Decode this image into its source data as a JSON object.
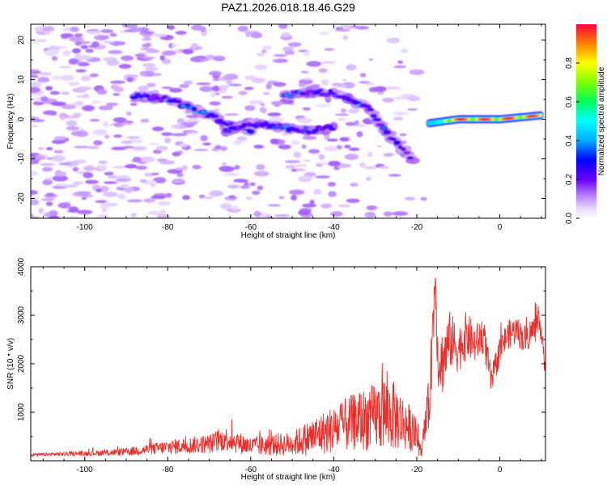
{
  "title": "PAZ1.2026.018.18.46.G29",
  "chart_data": [
    {
      "type": "heatmap",
      "title": "PAZ1.2026.018.18.46.G29",
      "xlabel": "Height of straight line (km)",
      "ylabel": "Frequency (Hz)",
      "xlim": [
        -113,
        11
      ],
      "ylim": [
        -25,
        24
      ],
      "xticks": [
        -100,
        -80,
        -60,
        -40,
        -20,
        0
      ],
      "yticks": [
        -20,
        -10,
        0,
        10,
        20
      ],
      "xtick_labels": [
        "-100",
        "-80",
        "-60",
        "-40",
        "-20",
        "0"
      ],
      "ytick_labels": [
        "-20",
        "-10",
        "0",
        "10",
        "20"
      ],
      "colorbar": {
        "label": "Normalized spectral amplitude",
        "range": [
          0,
          1
        ],
        "ticks": [
          0.0,
          0.2,
          0.4,
          0.6,
          0.8
        ],
        "tick_labels": [
          "0.0",
          "0.2",
          "0.4",
          "0.6",
          "0.8"
        ]
      },
      "features": [
        {
          "name": "upper descending track",
          "x": [
            -88,
            -80,
            -72,
            -66,
            -60
          ],
          "y": [
            6,
            5,
            2,
            -1,
            -3
          ],
          "peak": 0.38
        },
        {
          "name": "lower descending track",
          "x": [
            -66,
            -60,
            -52,
            -46,
            -40
          ],
          "y": [
            -3,
            -1,
            -2,
            -3,
            -2
          ],
          "peak": 0.32
        },
        {
          "name": "middle descending track",
          "x": [
            -52,
            -44,
            -38,
            -32,
            -26,
            -21
          ],
          "y": [
            6,
            7,
            6,
            3,
            -5,
            -10
          ],
          "peak": 0.36
        },
        {
          "name": "steady carrier line",
          "x": [
            -17,
            -10,
            0,
            10
          ],
          "y": [
            -1,
            0,
            0,
            1
          ],
          "peak": 0.98
        }
      ]
    },
    {
      "type": "line",
      "xlabel": "Height of straight line (km)",
      "ylabel": "SNR (10 * v/v)",
      "xlim": [
        -113,
        11
      ],
      "ylim": [
        0,
        4000
      ],
      "xticks": [
        -100,
        -80,
        -60,
        -40,
        -20,
        0
      ],
      "yticks": [
        1000,
        2000,
        3000,
        4000
      ],
      "xtick_labels": [
        "-100",
        "-80",
        "-60",
        "-40",
        "-20",
        "0"
      ],
      "ytick_labels": [
        "1000",
        "2000",
        "3000",
        "4000"
      ],
      "color": "#e8302c",
      "series": [
        {
          "name": "SNR",
          "x": [
            -113,
            -100,
            -90,
            -80,
            -70,
            -66,
            -60,
            -50,
            -45,
            -40,
            -35,
            -30,
            -28,
            -25,
            -22,
            -20,
            -19,
            -17,
            -16,
            -15.5,
            -15,
            -14,
            -12,
            -10,
            -8,
            -6,
            -4,
            -2,
            0,
            2,
            4,
            6,
            8,
            10,
            11
          ],
          "y": [
            120,
            150,
            180,
            280,
            350,
            450,
            300,
            350,
            500,
            650,
            800,
            900,
            1000,
            900,
            700,
            500,
            150,
            1200,
            3000,
            3900,
            2200,
            2000,
            2500,
            2300,
            2600,
            2400,
            2600,
            1600,
            2300,
            2600,
            2700,
            2500,
            2700,
            2800,
            1800
          ],
          "noise_amplitude": [
            30,
            50,
            80,
            150,
            200,
            250,
            200,
            250,
            400,
            500,
            600,
            700,
            800,
            700,
            500,
            350,
            100,
            600,
            800,
            400,
            700,
            700,
            600,
            500,
            500,
            400,
            400,
            300,
            300,
            300,
            300,
            300,
            300,
            300,
            200
          ]
        }
      ]
    }
  ]
}
